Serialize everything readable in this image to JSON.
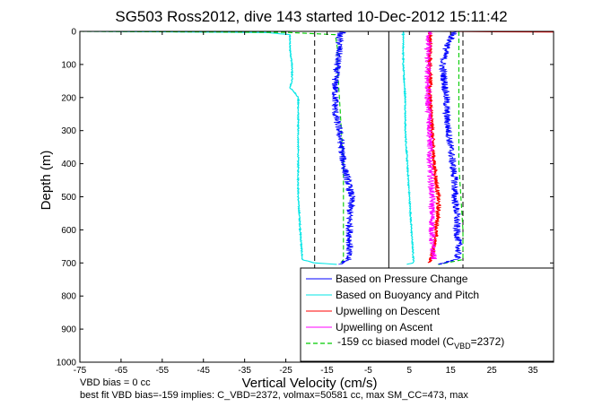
{
  "chart_data": {
    "type": "line",
    "title": "SG503 Ross2012, dive 143 started 10-Dec-2012 15:11:42",
    "xlabel": "Vertical Velocity (cm/s)",
    "ylabel": "Depth (m)",
    "xlim": [
      -75,
      40
    ],
    "ylim": [
      0,
      1000
    ],
    "y_reversed": true,
    "xticks": [
      -75,
      -65,
      -55,
      -45,
      -35,
      -25,
      -15,
      -5,
      5,
      15,
      25,
      35
    ],
    "yticks": [
      0,
      100,
      200,
      300,
      400,
      500,
      600,
      700,
      800,
      900,
      1000
    ],
    "grid": false,
    "legend_position": "bottom-right",
    "vertical_lines": [
      {
        "x": 0,
        "style": "solid",
        "color": "#000000"
      },
      {
        "x": -18,
        "style": "dashed",
        "color": "#000000"
      },
      {
        "x": 18,
        "style": "dashed",
        "color": "#000000"
      }
    ],
    "series": [
      {
        "name": "Based on Pressure Change",
        "color": "#0000ff",
        "style": "solid",
        "noise": 0.9,
        "branches": [
          {
            "depth": [
              0,
              10,
              50,
              100,
              150,
              200,
              250,
              300,
              350,
              400,
              450,
              500,
              550,
              600,
              650,
              690,
              705
            ],
            "x": [
              -11,
              -12,
              -12,
              -12.5,
              -13,
              -13,
              -13,
              -12,
              -11.5,
              -11,
              -10,
              -9,
              -9.5,
              -9.5,
              -9.5,
              -10,
              -12
            ]
          },
          {
            "depth": [
              0,
              10,
              50,
              100,
              150,
              200,
              250,
              300,
              350,
              400,
              450,
              500,
              550,
              600,
              650,
              690,
              705
            ],
            "x": [
              16,
              15.5,
              14,
              13,
              13.5,
              14,
              14,
              14.5,
              15,
              15.5,
              16,
              16,
              16.5,
              16.5,
              17,
              16.5,
              12
            ]
          }
        ]
      },
      {
        "name": "Based on Buoyancy and Pitch",
        "color": "#00e5e5",
        "style": "solid",
        "noise": 0.15,
        "branches": [
          {
            "depth": [
              0,
              3,
              10,
              50,
              100,
              150,
              170,
              190,
              200,
              300,
              400,
              500,
              600,
              690,
              700,
              705
            ],
            "x": [
              -75,
              -30,
              -24,
              -24,
              -23.5,
              -23.5,
              -24,
              -22.5,
              -22,
              -22,
              -22,
              -22,
              -21.5,
              -21,
              -18,
              -12
            ]
          },
          {
            "depth": [
              0,
              10,
              50,
              100,
              200,
              300,
              400,
              500,
              600,
              690,
              700,
              705
            ],
            "x": [
              3.5,
              3.5,
              3.5,
              3.5,
              4,
              4,
              4.5,
              5,
              5.5,
              6,
              6,
              4
            ]
          }
        ]
      },
      {
        "name": "Upwelling on Descent",
        "color": "#ff0000",
        "style": "solid",
        "noise": 0.5,
        "branches": [
          {
            "depth": [
              0,
              100,
              200,
              300,
              400,
              500,
              550,
              600,
              650,
              700
            ],
            "x": [
              10,
              10,
              10,
              10.5,
              11,
              12,
              12,
              11.5,
              11,
              10
            ]
          },
          {
            "depth": [
              0,
              1,
              2
            ],
            "x": [
              12,
              26,
              40
            ]
          }
        ]
      },
      {
        "name": "Upwelling on Ascent",
        "color": "#ff00ff",
        "style": "solid",
        "noise": 0.8,
        "branches": [
          {
            "depth": [
              0,
              50,
              100,
              200,
              300,
              400,
              500,
              600,
              650,
              690
            ],
            "x": [
              10,
              9.5,
              9.5,
              9.5,
              10,
              10,
              10.5,
              10.5,
              10.5,
              11
            ]
          }
        ]
      },
      {
        "name": "-159 cc biased model (C_VBD=2372)",
        "color": "#00cc00",
        "style": "dashed",
        "noise": 0,
        "branches": [
          {
            "depth": [
              0,
              3,
              10,
              50,
              100,
              200,
              300,
              400,
              500,
              600,
              690,
              705
            ],
            "x": [
              -75,
              -25,
              -13,
              -12.5,
              -12.5,
              -12,
              -11.5,
              -11,
              -11,
              -11,
              -11,
              -12
            ]
          },
          {
            "depth": [
              0,
              10,
              50,
              100,
              200,
              300,
              400,
              500,
              600,
              690,
              705
            ],
            "x": [
              17,
              17,
              17,
              17,
              17,
              17,
              17,
              17.5,
              18,
              18,
              12
            ]
          }
        ]
      }
    ],
    "legend": {
      "entries": [
        {
          "label": "Based on Pressure Change"
        },
        {
          "label": "Based on Buoyancy and Pitch"
        },
        {
          "label": "Upwelling on Descent"
        },
        {
          "label": "Upwelling on Ascent"
        },
        {
          "label_main": "-159 cc biased model (C",
          "label_sub": "VBD",
          "label_tail": "=2372)"
        }
      ]
    },
    "annotations": {
      "line1": "VBD bias = 0 cc",
      "line2": "best fit VBD bias=-159 implies: C_VBD=2372, volmax=50581 cc, max SM_CC=473, max"
    }
  }
}
